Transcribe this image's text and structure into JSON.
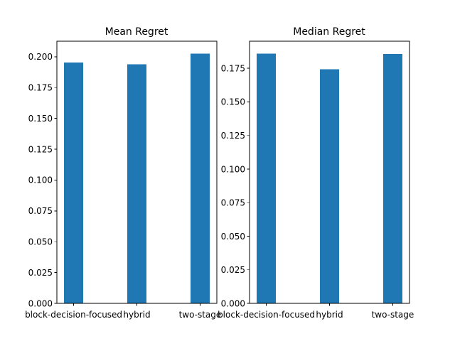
{
  "chart_data": [
    {
      "type": "bar",
      "title": "Mean Regret",
      "categories": [
        "block-decision-focused",
        "hybrid",
        "two-stage"
      ],
      "values": [
        0.1952,
        0.194,
        0.2025
      ],
      "xlabel": "",
      "ylabel": "",
      "ylim": [
        0,
        0.2126
      ],
      "yticks": [
        0.0,
        0.025,
        0.05,
        0.075,
        0.1,
        0.125,
        0.15,
        0.175,
        0.2
      ],
      "yticklabels": [
        "0.000",
        "0.025",
        "0.050",
        "0.075",
        "0.100",
        "0.125",
        "0.150",
        "0.175",
        "0.200"
      ],
      "bar_color": "#1f77b4",
      "grid": false,
      "legend": "none"
    },
    {
      "type": "bar",
      "title": "Median Regret",
      "categories": [
        "block-decision-focused",
        "hybrid",
        "two-stage"
      ],
      "values": [
        0.1859,
        0.1743,
        0.1858
      ],
      "xlabel": "",
      "ylabel": "",
      "ylim": [
        0,
        0.1952
      ],
      "yticks": [
        0.0,
        0.025,
        0.05,
        0.075,
        0.1,
        0.125,
        0.15,
        0.175
      ],
      "yticklabels": [
        "0.000",
        "0.025",
        "0.050",
        "0.075",
        "0.100",
        "0.125",
        "0.150",
        "0.175"
      ],
      "bar_color": "#1f77b4",
      "grid": false,
      "legend": "none"
    }
  ]
}
